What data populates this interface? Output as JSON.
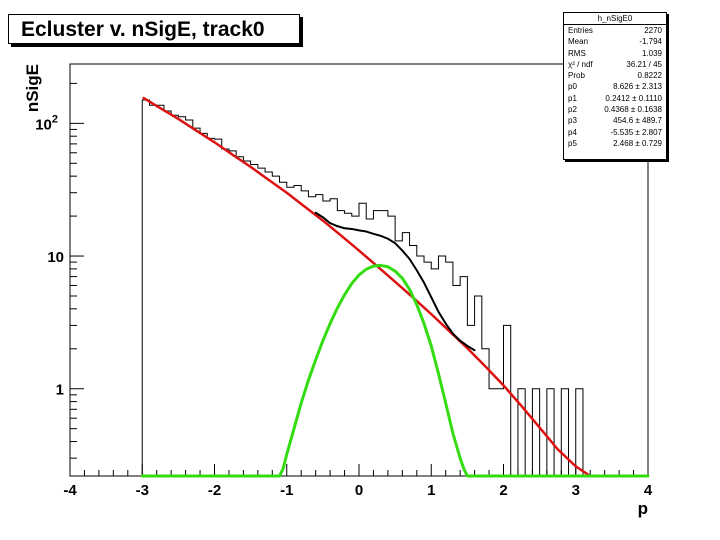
{
  "chart_data": {
    "type": "line",
    "title": "Ecluster v. nSigE, track0",
    "xlabel": "p",
    "ylabel": "nSigE",
    "xlim": [
      -4,
      4
    ],
    "ylim": [
      0.22,
      280
    ],
    "yscale": "log",
    "grid": false,
    "x_ticks": [
      "-4",
      "-3",
      "-2",
      "-1",
      "0",
      "1",
      "2",
      "3",
      "4"
    ],
    "y_ticks": [
      {
        "value": 1,
        "label": "1"
      },
      {
        "value": 10,
        "label": "10"
      },
      {
        "value": 100,
        "label": "10",
        "sup": "2"
      }
    ],
    "histogram": {
      "name": "h_nSigE0",
      "color": "#000000",
      "bin_edges": [
        -3.0,
        -2.9,
        -2.8,
        -2.7,
        -2.6,
        -2.5,
        -2.4,
        -2.3,
        -2.2,
        -2.1,
        -2.0,
        -1.9,
        -1.8,
        -1.7,
        -1.6,
        -1.5,
        -1.4,
        -1.3,
        -1.2,
        -1.1,
        -1.0,
        -0.9,
        -0.8,
        -0.7,
        -0.6,
        -0.5,
        -0.4,
        -0.3,
        -0.2,
        -0.1,
        0.0,
        0.1,
        0.2,
        0.3,
        0.4,
        0.5,
        0.6,
        0.7,
        0.8,
        0.9,
        1.0,
        1.1,
        1.2,
        1.3,
        1.4,
        1.5,
        1.6,
        1.7,
        1.8,
        1.9,
        2.0,
        2.1,
        2.2,
        2.3,
        2.4,
        2.5,
        2.6,
        2.7,
        2.8,
        2.9,
        3.0,
        3.1,
        3.2
      ],
      "counts": [
        150,
        137,
        137,
        124,
        115,
        112,
        106,
        92,
        84,
        77,
        76,
        64,
        62,
        56,
        52,
        49,
        46,
        43,
        40,
        36,
        33,
        34,
        31,
        28,
        29,
        26,
        27,
        22,
        21,
        20,
        25,
        19,
        22,
        22,
        20,
        13,
        15,
        12,
        10,
        9,
        8,
        10,
        9,
        6,
        7,
        3,
        5,
        2,
        1,
        1,
        3,
        0,
        1,
        0,
        1,
        0,
        1,
        0,
        1,
        0,
        1,
        0
      ]
    },
    "series": [
      {
        "name": "background fit",
        "color": "#dd1111",
        "x": [
          -2.98,
          -2.75,
          -2.5,
          -2.25,
          -2.0,
          -1.75,
          -1.5,
          -1.25,
          -1.0,
          -0.75,
          -0.5,
          -0.25,
          0.0,
          0.25,
          0.5,
          0.75,
          1.0,
          1.25,
          1.5,
          1.75,
          2.0,
          2.25,
          2.5,
          2.75,
          3.0,
          3.2
        ],
        "y": [
          155,
          130,
          108,
          88,
          72,
          58,
          47,
          37.5,
          30,
          23.5,
          18.5,
          14.3,
          11,
          8.4,
          6.4,
          4.85,
          3.65,
          2.72,
          2.02,
          1.47,
          1.06,
          0.74,
          0.51,
          0.35,
          0.26,
          0.2
        ]
      },
      {
        "name": "total fit",
        "color": "#000000",
        "x": [
          -0.6,
          -0.5,
          -0.4,
          -0.3,
          -0.2,
          -0.1,
          0.0,
          0.1,
          0.2,
          0.3,
          0.4,
          0.5,
          0.6,
          0.7,
          0.8,
          0.9,
          1.0,
          1.1,
          1.2,
          1.3,
          1.4,
          1.5,
          1.6
        ],
        "y": [
          21.2,
          19.6,
          17.7,
          16.8,
          16.2,
          16.0,
          15.6,
          15.3,
          14.7,
          14.2,
          13.5,
          12.5,
          11.0,
          9.5,
          7.8,
          6.3,
          4.9,
          3.8,
          3.1,
          2.6,
          2.3,
          2.1,
          1.95
        ]
      },
      {
        "name": "signal fit",
        "color": "#33dd11",
        "x": [
          -3.0,
          -2.0,
          -1.1,
          -1.05,
          -1.0,
          -0.95,
          -0.9,
          -0.8,
          -0.7,
          -0.6,
          -0.5,
          -0.4,
          -0.3,
          -0.2,
          -0.1,
          0.0,
          0.1,
          0.2,
          0.3,
          0.4,
          0.5,
          0.6,
          0.7,
          0.8,
          0.9,
          1.0,
          1.1,
          1.2,
          1.3,
          1.4,
          1.45,
          1.5,
          2.0,
          3.0,
          4.0
        ],
        "y": [
          0.22,
          0.22,
          0.22,
          0.25,
          0.32,
          0.4,
          0.5,
          0.78,
          1.16,
          1.65,
          2.3,
          3.1,
          4.05,
          5.1,
          6.2,
          7.2,
          7.95,
          8.4,
          8.5,
          8.3,
          7.7,
          6.8,
          5.6,
          4.3,
          3.1,
          2.1,
          1.3,
          0.78,
          0.46,
          0.3,
          0.25,
          0.22,
          0.22,
          0.22,
          0.22
        ]
      }
    ],
    "stats": {
      "title": "h_nSigE0",
      "rows": [
        {
          "key": "Entries",
          "value": "2270"
        },
        {
          "key": "Mean",
          "value": "-1.794"
        },
        {
          "key": "RMS",
          "value": "1.039"
        },
        {
          "key": "χ² / ndf",
          "value": "36.21 / 45"
        },
        {
          "key": "Prob",
          "value": "0.8222"
        },
        {
          "key": "p0",
          "value": "8.626 ± 2.313"
        },
        {
          "key": "p1",
          "value": "0.2412 ± 0.1110"
        },
        {
          "key": "p2",
          "value": "0.4368 ± 0.1638"
        },
        {
          "key": "p3",
          "value": "454.6 ± 489.7"
        },
        {
          "key": "p4",
          "value": "-5.535 ± 2.807"
        },
        {
          "key": "p5",
          "value": "2.468 ± 0.729"
        }
      ]
    }
  }
}
